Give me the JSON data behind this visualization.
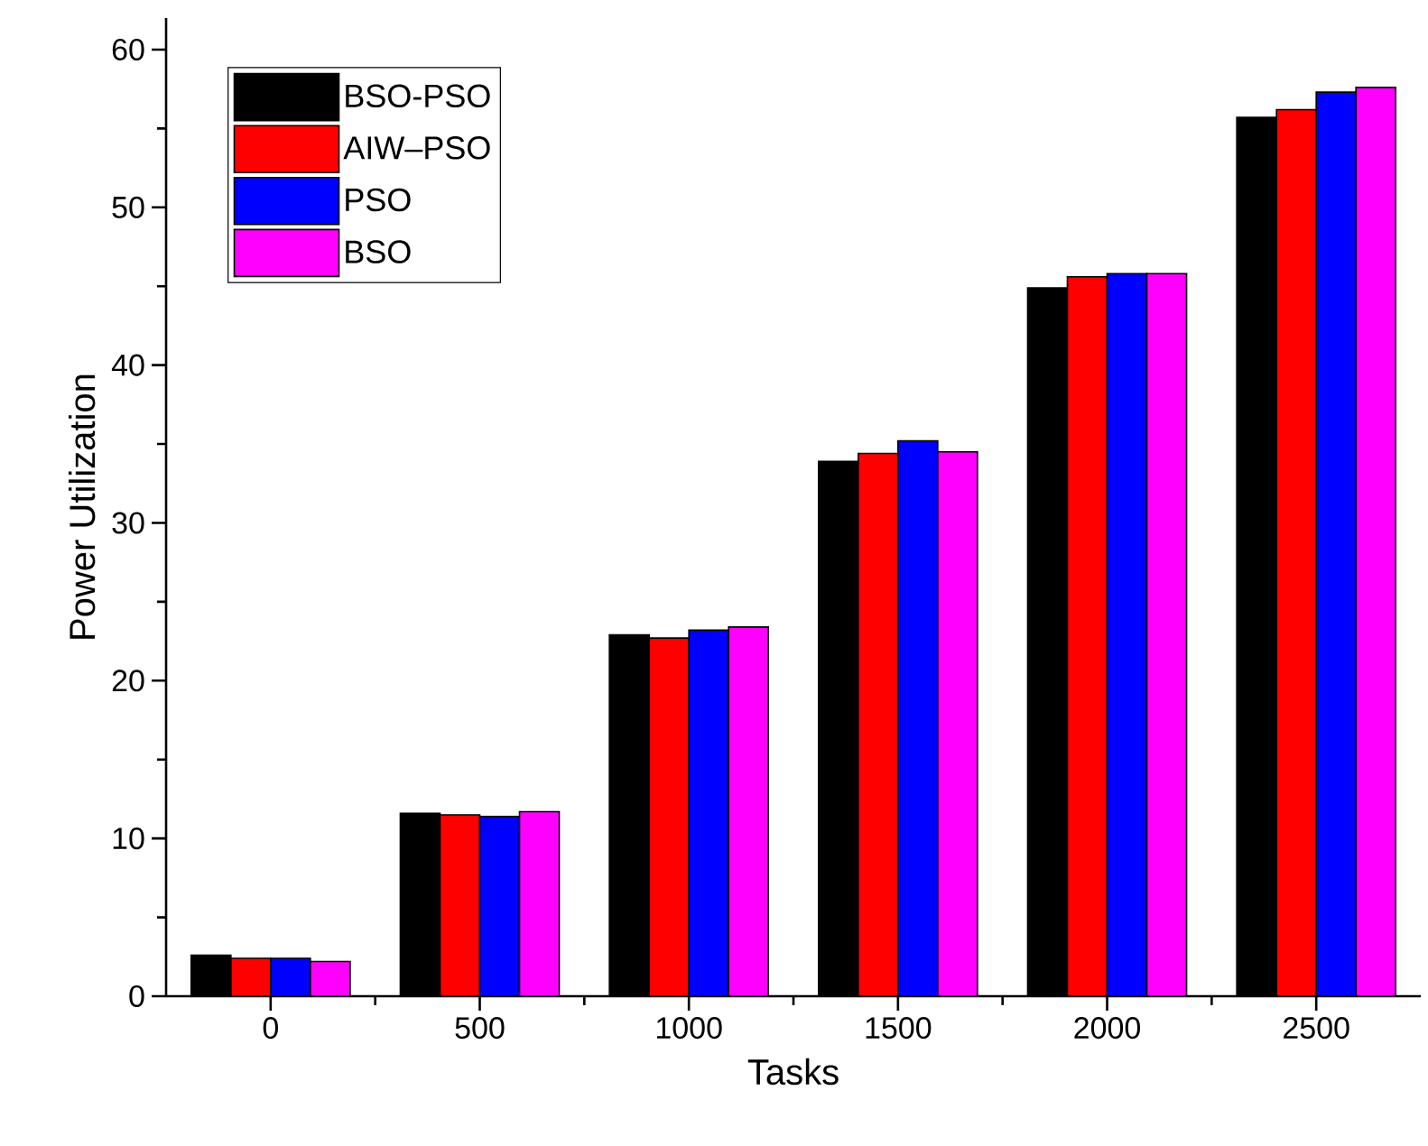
{
  "chart_data": {
    "type": "bar",
    "xlabel": "Tasks",
    "ylabel": "Power Utilization",
    "categories": [
      "0",
      "500",
      "1000",
      "1500",
      "2000",
      "2500"
    ],
    "series": [
      {
        "name": "BSO-PSO",
        "color": "#000000",
        "values": [
          2.6,
          11.6,
          22.9,
          33.9,
          44.9,
          55.7
        ]
      },
      {
        "name": "AIW–PSO",
        "color": "#ff0000",
        "values": [
          2.4,
          11.5,
          22.7,
          34.4,
          45.6,
          56.2
        ]
      },
      {
        "name": "PSO",
        "color": "#0000ff",
        "values": [
          2.4,
          11.4,
          23.2,
          35.2,
          45.8,
          57.3
        ]
      },
      {
        "name": "BSO",
        "color": "#ff00ff",
        "values": [
          2.2,
          11.7,
          23.4,
          34.5,
          45.8,
          57.6
        ]
      }
    ],
    "ylim": [
      0,
      62
    ],
    "yticks": [
      0,
      10,
      20,
      30,
      40,
      50,
      60
    ],
    "legend": "top left"
  }
}
